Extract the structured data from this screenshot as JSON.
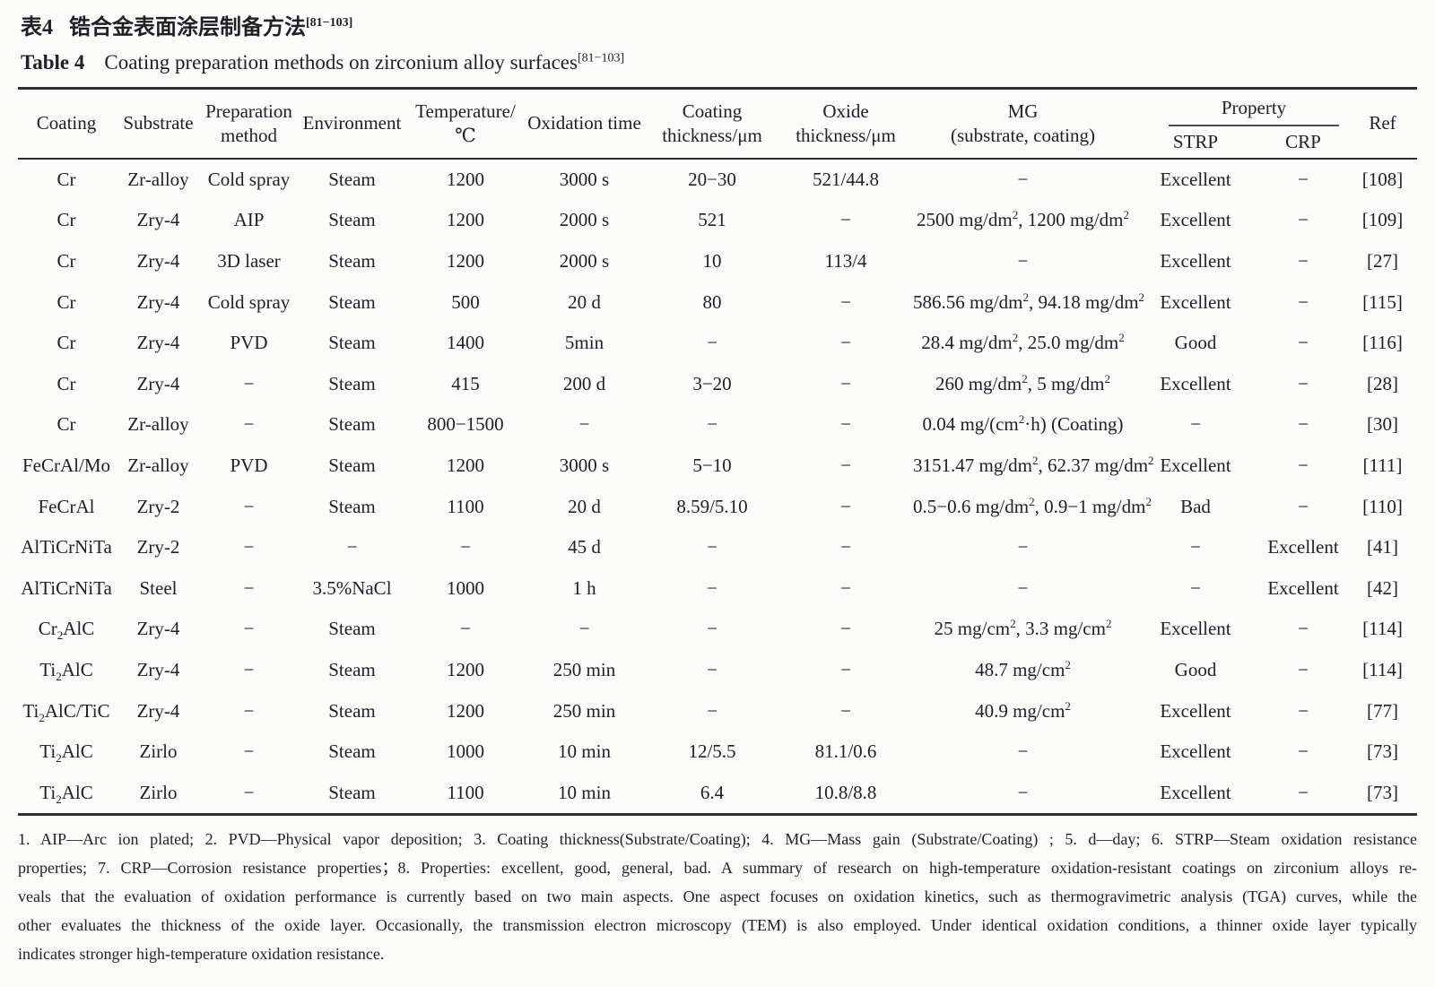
{
  "colors": {
    "ink": "#20202b",
    "rule": "#2d2d36",
    "background": "#fcfcfa"
  },
  "title": {
    "zh_label": "表4",
    "zh_text": "锆合金表面涂层制备方法",
    "zh_ref": "[81−103]",
    "en_label": "Table 4",
    "en_text": "Coating preparation methods on zirconium alloy surfaces",
    "en_ref": "[81−103]"
  },
  "table": {
    "headers": {
      "coating": [
        "Coating"
      ],
      "substrate": [
        "Substrate"
      ],
      "preparation_method": [
        "Preparation",
        "method"
      ],
      "environment": [
        "Environment"
      ],
      "temperature": [
        "Temperature/",
        "℃"
      ],
      "oxidation_time": [
        "Oxidation time"
      ],
      "coating_thickness": [
        "Coating",
        "thickness/μm"
      ],
      "oxide_thickness": [
        "Oxide",
        "thickness/μm"
      ],
      "mg": [
        "MG",
        "(substrate, coating)"
      ],
      "property": "Property",
      "strp": "STRP",
      "crp": "CRP",
      "ref": [
        "Ref"
      ]
    },
    "rows": [
      [
        "Cr",
        "Zr-alloy",
        "Cold spray",
        "Steam",
        "1200",
        "3000 s",
        "20−30",
        "521/44.8",
        "−",
        "Excellent",
        "−",
        "[108]"
      ],
      [
        "Cr",
        "Zry-4",
        "AIP",
        "Steam",
        "1200",
        "2000 s",
        "521",
        "−",
        "2500 mg/dm², 1200 mg/dm²",
        "Excellent",
        "−",
        "[109]"
      ],
      [
        "Cr",
        "Zry-4",
        "3D laser",
        "Steam",
        "1200",
        "2000 s",
        "10",
        "113/4",
        "−",
        "Excellent",
        "−",
        "[27]"
      ],
      [
        "Cr",
        "Zry-4",
        "Cold spray",
        "Steam",
        "500",
        "20 d",
        "80",
        "−",
        "586.56 mg/dm², 94.18 mg/dm²",
        "Excellent",
        "−",
        "[115]"
      ],
      [
        "Cr",
        "Zry-4",
        "PVD",
        "Steam",
        "1400",
        "5min",
        "−",
        "−",
        "28.4 mg/dm², 25.0 mg/dm²",
        "Good",
        "−",
        "[116]"
      ],
      [
        "Cr",
        "Zry-4",
        "−",
        "Steam",
        "415",
        "200 d",
        "3−20",
        "−",
        "260 mg/dm², 5 mg/dm²",
        "Excellent",
        "−",
        "[28]"
      ],
      [
        "Cr",
        "Zr-alloy",
        "−",
        "Steam",
        "800−1500",
        "−",
        "−",
        "−",
        "0.04 mg/(cm²·h) (Coating)",
        "−",
        "−",
        "[30]"
      ],
      [
        "FeCrAl/Mo",
        "Zr-alloy",
        "PVD",
        "Steam",
        "1200",
        "3000 s",
        "5−10",
        "−",
        "3151.47 mg/dm², 62.37 mg/dm²",
        "Excellent",
        "−",
        "[111]"
      ],
      [
        "FeCrAl",
        "Zry-2",
        "−",
        "Steam",
        "1100",
        "20 d",
        "8.59/5.10",
        "−",
        "0.5−0.6 mg/dm², 0.9−1 mg/dm²",
        "Bad",
        "−",
        "[110]"
      ],
      [
        "AlTiCrNiTa",
        "Zry-2",
        "−",
        "−",
        "−",
        "45 d",
        "−",
        "−",
        "−",
        "−",
        "Excellent",
        "[41]"
      ],
      [
        "AlTiCrNiTa",
        "Steel",
        "−",
        "3.5%NaCl",
        "1000",
        "1 h",
        "−",
        "−",
        "−",
        "−",
        "Excellent",
        "[42]"
      ],
      [
        "Cr₂AlC",
        "Zry-4",
        "−",
        "Steam",
        "−",
        "−",
        "−",
        "−",
        "25 mg/cm², 3.3 mg/cm²",
        "Excellent",
        "−",
        "[114]"
      ],
      [
        "Ti₂AlC",
        "Zry-4",
        "−",
        "Steam",
        "1200",
        "250 min",
        "−",
        "−",
        "48.7 mg/cm²",
        "Good",
        "−",
        "[114]"
      ],
      [
        "Ti₂AlC/TiC",
        "Zry-4",
        "−",
        "Steam",
        "1200",
        "250 min",
        "−",
        "−",
        "40.9 mg/cm²",
        "Excellent",
        "−",
        "[77]"
      ],
      [
        "Ti₂AlC",
        "Zirlo",
        "−",
        "Steam",
        "1000",
        "10 min",
        "12/5.5",
        "81.1/0.6",
        "−",
        "Excellent",
        "−",
        "[73]"
      ],
      [
        "Ti₂AlC",
        "Zirlo",
        "−",
        "Steam",
        "1100",
        "10 min",
        "6.4",
        "10.8/8.8",
        "−",
        "Excellent",
        "−",
        "[73]"
      ]
    ]
  },
  "footnotes": {
    "lines": [
      "1. AIP—Arc ion plated; 2. PVD—Physical vapor deposition; 3. Coating thickness(Substrate/Coating); 4. MG—Mass gain (Substrate/Coating) ; 5. d—day; 6. STRP—Steam oxidation resistance",
      "properties; 7. CRP—Corrosion resistance properties；8. Properties: excellent, good, general, bad. A summary of research on high-temperature oxidation-resistant coatings on zirconium alloys re-",
      "veals that the evaluation of oxidation performance is currently based on two main aspects. One aspect focuses on oxidation kinetics, such as thermogravimetric analysis (TGA) curves, while the",
      "other evaluates the thickness of the oxide layer. Occasionally, the transmission electron microscopy (TEM) is also employed. Under identical oxidation conditions, a thinner oxide layer typically",
      "indicates stronger high-temperature oxidation resistance."
    ]
  }
}
